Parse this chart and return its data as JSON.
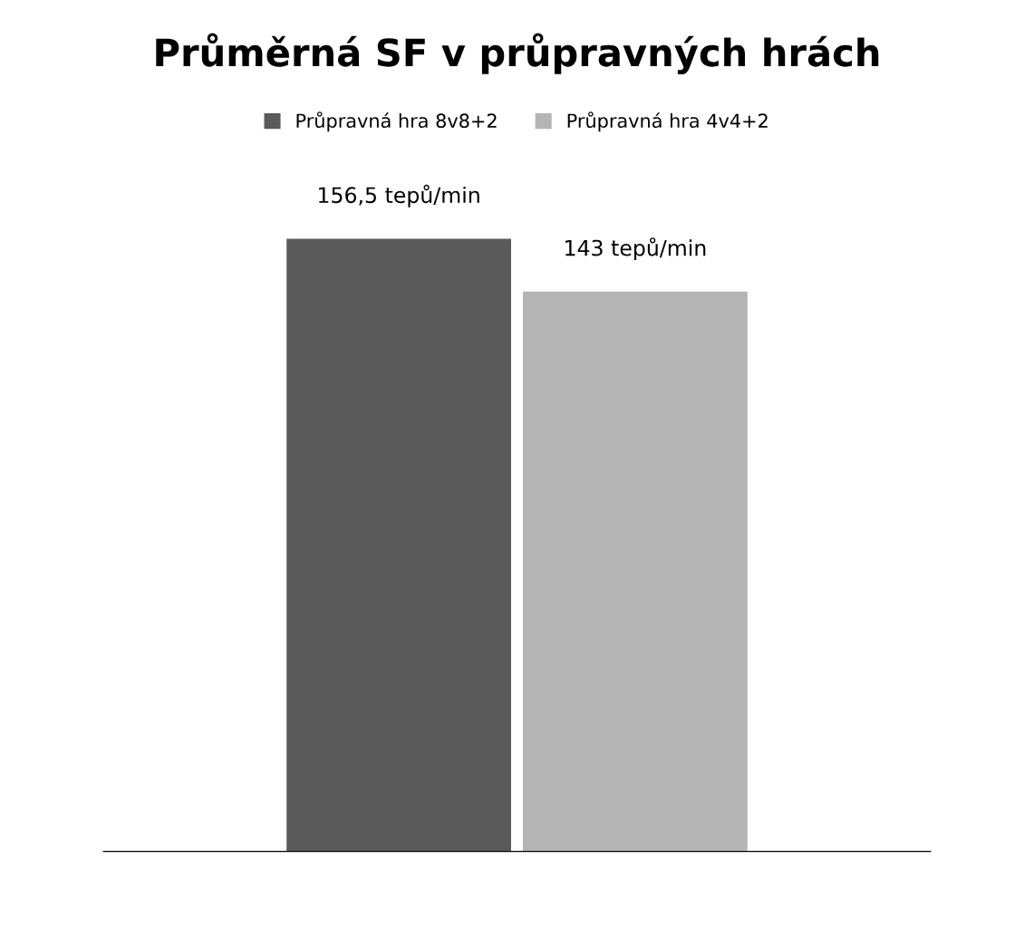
{
  "chart_data": {
    "type": "bar",
    "title": "Průměrná SF v průpravných hrách",
    "categories": [
      null
    ],
    "series": [
      {
        "name": "Průpravná hra 8v8+2",
        "color": "#5a5a5a",
        "values": [
          156.5
        ],
        "value_labels": [
          "156,5 tepů/min"
        ]
      },
      {
        "name": "Průpravná hra 4v4+2",
        "color": "#b4b4b4",
        "values": [
          143
        ],
        "value_labels": [
          "143 tepů/min"
        ]
      }
    ],
    "legend": "top",
    "grid": false,
    "tick_labels": false
  }
}
